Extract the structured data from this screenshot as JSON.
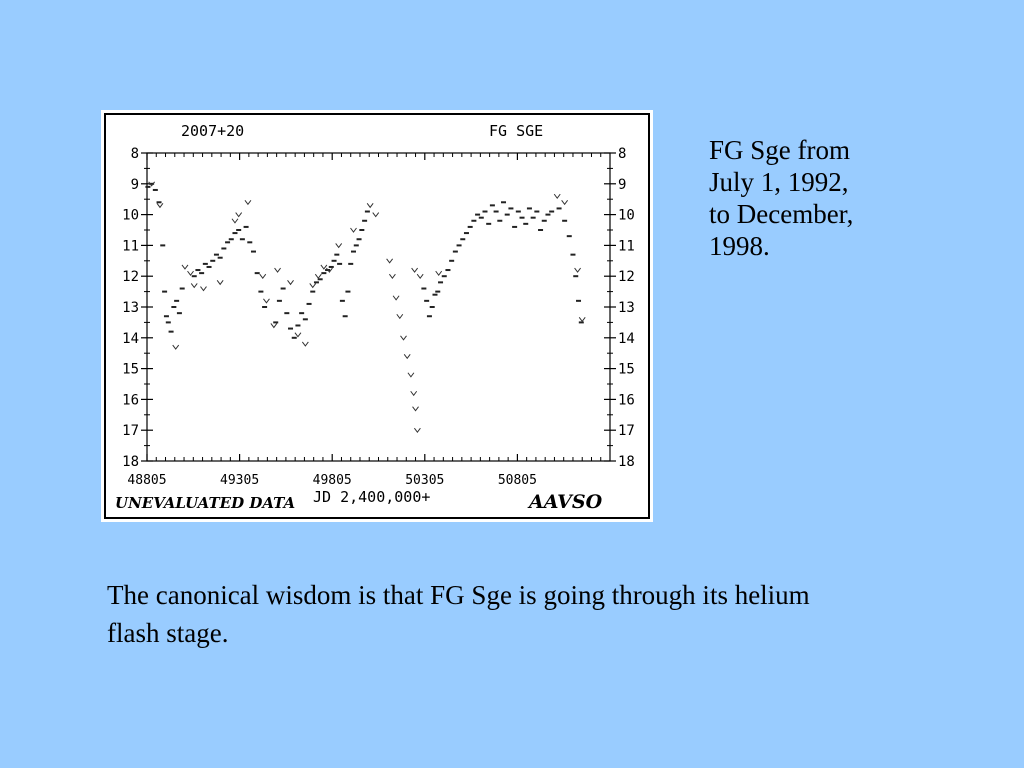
{
  "chart_data": {
    "type": "scatter",
    "title_left": "2007+20",
    "title_right": "FG SGE",
    "xlabel": "JD 2,400,000+",
    "footer_left": "UNEVALUATED DATA",
    "footer_right": "AAVSO",
    "xlim": [
      48805,
      51305
    ],
    "ylim": [
      18,
      8
    ],
    "x_ticks": [
      48805,
      49305,
      49805,
      50305,
      50805
    ],
    "y_ticks": [
      8,
      9,
      10,
      11,
      12,
      13,
      14,
      15,
      16,
      17,
      18
    ],
    "series": [
      {
        "marker": "dot",
        "points": [
          [
            48810,
            9.1
          ],
          [
            48830,
            9.0
          ],
          [
            48850,
            9.2
          ],
          [
            48870,
            9.6
          ],
          [
            48890,
            11.0
          ],
          [
            48900,
            12.5
          ],
          [
            48910,
            13.3
          ],
          [
            48920,
            13.5
          ],
          [
            48935,
            13.8
          ],
          [
            48950,
            13.0
          ],
          [
            48965,
            12.8
          ],
          [
            48980,
            13.2
          ],
          [
            48995,
            12.4
          ],
          [
            49060,
            12.0
          ],
          [
            49080,
            11.8
          ],
          [
            49100,
            11.9
          ],
          [
            49120,
            11.6
          ],
          [
            49140,
            11.7
          ],
          [
            49160,
            11.5
          ],
          [
            49180,
            11.3
          ],
          [
            49200,
            11.4
          ],
          [
            49220,
            11.1
          ],
          [
            49240,
            10.9
          ],
          [
            49260,
            10.8
          ],
          [
            49280,
            10.6
          ],
          [
            49300,
            10.5
          ],
          [
            49320,
            10.8
          ],
          [
            49340,
            10.4
          ],
          [
            49360,
            10.9
          ],
          [
            49380,
            11.2
          ],
          [
            49400,
            11.9
          ],
          [
            49420,
            12.5
          ],
          [
            49440,
            13.0
          ],
          [
            49500,
            13.5
          ],
          [
            49520,
            12.8
          ],
          [
            49540,
            12.4
          ],
          [
            49560,
            13.2
          ],
          [
            49580,
            13.7
          ],
          [
            49600,
            14.0
          ],
          [
            49620,
            13.6
          ],
          [
            49640,
            13.2
          ],
          [
            49660,
            13.4
          ],
          [
            49680,
            12.9
          ],
          [
            49700,
            12.5
          ],
          [
            49720,
            12.2
          ],
          [
            49740,
            12.1
          ],
          [
            49760,
            11.9
          ],
          [
            49780,
            11.8
          ],
          [
            49800,
            11.7
          ],
          [
            49815,
            11.5
          ],
          [
            49830,
            11.3
          ],
          [
            49845,
            11.6
          ],
          [
            49860,
            12.8
          ],
          [
            49875,
            13.3
          ],
          [
            49890,
            12.5
          ],
          [
            49905,
            11.6
          ],
          [
            49920,
            11.2
          ],
          [
            49935,
            11.0
          ],
          [
            49950,
            10.8
          ],
          [
            49965,
            10.5
          ],
          [
            49980,
            10.2
          ],
          [
            49995,
            9.9
          ],
          [
            50300,
            12.4
          ],
          [
            50315,
            12.8
          ],
          [
            50330,
            13.3
          ],
          [
            50345,
            13.0
          ],
          [
            50360,
            12.6
          ],
          [
            50375,
            12.5
          ],
          [
            50390,
            12.2
          ],
          [
            50410,
            12.0
          ],
          [
            50430,
            11.8
          ],
          [
            50450,
            11.5
          ],
          [
            50470,
            11.2
          ],
          [
            50490,
            11.0
          ],
          [
            50510,
            10.8
          ],
          [
            50530,
            10.6
          ],
          [
            50550,
            10.4
          ],
          [
            50570,
            10.2
          ],
          [
            50590,
            10.0
          ],
          [
            50610,
            10.1
          ],
          [
            50630,
            9.9
          ],
          [
            50650,
            10.3
          ],
          [
            50670,
            9.7
          ],
          [
            50690,
            9.9
          ],
          [
            50710,
            10.2
          ],
          [
            50730,
            9.6
          ],
          [
            50750,
            10.0
          ],
          [
            50770,
            9.8
          ],
          [
            50790,
            10.4
          ],
          [
            50810,
            9.9
          ],
          [
            50830,
            10.1
          ],
          [
            50850,
            10.3
          ],
          [
            50870,
            9.8
          ],
          [
            50890,
            10.1
          ],
          [
            50910,
            9.9
          ],
          [
            50930,
            10.5
          ],
          [
            50950,
            10.2
          ],
          [
            50970,
            10.0
          ],
          [
            50990,
            9.9
          ],
          [
            51030,
            9.8
          ],
          [
            51060,
            10.2
          ],
          [
            51085,
            10.7
          ],
          [
            51105,
            11.3
          ],
          [
            51120,
            12.0
          ],
          [
            51135,
            12.8
          ],
          [
            51150,
            13.5
          ]
        ]
      },
      {
        "marker": "v",
        "points": [
          [
            48830,
            9.0
          ],
          [
            48875,
            9.7
          ],
          [
            48960,
            14.3
          ],
          [
            49010,
            11.7
          ],
          [
            49040,
            11.9
          ],
          [
            49060,
            12.3
          ],
          [
            49110,
            12.4
          ],
          [
            49200,
            12.2
          ],
          [
            49280,
            10.2
          ],
          [
            49300,
            10.0
          ],
          [
            49350,
            9.6
          ],
          [
            49430,
            12.0
          ],
          [
            49450,
            12.8
          ],
          [
            49490,
            13.6
          ],
          [
            49510,
            11.8
          ],
          [
            49580,
            12.2
          ],
          [
            49620,
            13.9
          ],
          [
            49660,
            14.2
          ],
          [
            49700,
            12.3
          ],
          [
            49730,
            12.0
          ],
          [
            49760,
            11.7
          ],
          [
            49790,
            11.8
          ],
          [
            49840,
            11.0
          ],
          [
            49920,
            10.5
          ],
          [
            50010,
            9.7
          ],
          [
            50040,
            10.0
          ],
          [
            50115,
            11.5
          ],
          [
            50130,
            12.0
          ],
          [
            50150,
            12.7
          ],
          [
            50170,
            13.3
          ],
          [
            50190,
            14.0
          ],
          [
            50210,
            14.6
          ],
          [
            50230,
            15.2
          ],
          [
            50245,
            15.8
          ],
          [
            50255,
            16.3
          ],
          [
            50265,
            17.0
          ],
          [
            50250,
            11.8
          ],
          [
            50280,
            12.0
          ],
          [
            50380,
            11.9
          ],
          [
            51020,
            9.4
          ],
          [
            51060,
            9.6
          ],
          [
            51130,
            11.8
          ],
          [
            51155,
            13.4
          ]
        ]
      }
    ]
  },
  "side_caption": "FG Sge from\nJuly 1, 1992,\nto December,\n1998.",
  "bottom_caption": "The canonical wisdom is that FG Sge is going through its helium flash stage."
}
